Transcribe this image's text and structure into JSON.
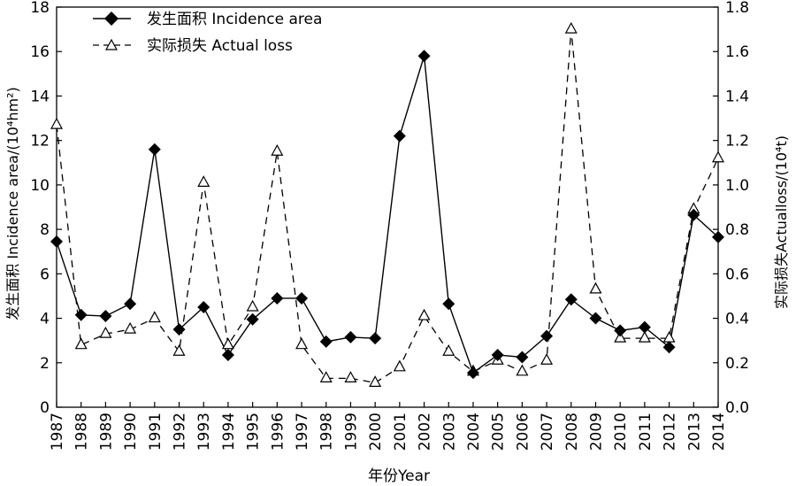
{
  "chart_data": {
    "type": "line",
    "x": [
      1987,
      1988,
      1989,
      1990,
      1991,
      1992,
      1993,
      1994,
      1995,
      1996,
      1997,
      1998,
      1999,
      2000,
      2001,
      2002,
      2003,
      2004,
      2005,
      2006,
      2007,
      2008,
      2009,
      2010,
      2011,
      2012,
      2013,
      2014
    ],
    "x_tick_labels": [
      "1987",
      "1988",
      "1989",
      "1990",
      "1991",
      "1992",
      "1993",
      "1994",
      "1995",
      "1996",
      "1997",
      "1998",
      "1999",
      "2000",
      "2001",
      "2002",
      "2003",
      "2004",
      "2005",
      "2006",
      "2007",
      "2008",
      "2009",
      "2010",
      "2011",
      "2012",
      "2013",
      "2014"
    ],
    "xlabel": "年份Year",
    "ylabel_left": "发生面积 Incidence area/(10⁴hm²)",
    "ylabel_right": "实际损失Actualloss/(10⁴t)",
    "ylim_left": [
      0,
      18
    ],
    "ylim_right": [
      0,
      1.8
    ],
    "y_ticks_left": [
      "0",
      "2",
      "4",
      "6",
      "8",
      "10",
      "12",
      "14",
      "16",
      "18"
    ],
    "y_ticks_right": [
      "0.0",
      "0.2",
      "0.4",
      "0.6",
      "0.8",
      "1.0",
      "1.2",
      "1.4",
      "1.6",
      "1.8"
    ],
    "grid": false,
    "legend_position": "top-left",
    "series": [
      {
        "name": "发生面积 Incidence area",
        "axis": "left",
        "style": "solid",
        "marker": "filled-diamond",
        "color": "#000000",
        "values": [
          7.45,
          4.15,
          4.1,
          4.65,
          11.6,
          3.5,
          4.5,
          2.35,
          3.95,
          4.9,
          4.9,
          2.95,
          3.15,
          3.1,
          12.2,
          15.8,
          4.65,
          1.55,
          2.35,
          2.25,
          3.2,
          4.85,
          4.0,
          3.45,
          3.6,
          2.7,
          8.65,
          7.65
        ]
      },
      {
        "name": "实际损失 Actual loss",
        "axis": "right",
        "style": "dashed",
        "marker": "open-triangle",
        "color": "#000000",
        "values": [
          1.27,
          0.28,
          0.33,
          0.35,
          0.4,
          0.25,
          1.01,
          0.28,
          0.45,
          1.15,
          0.28,
          0.13,
          0.13,
          0.11,
          0.18,
          0.41,
          0.25,
          0.16,
          0.21,
          0.16,
          0.21,
          1.7,
          0.53,
          0.31,
          0.31,
          0.31,
          0.89,
          1.12
        ]
      }
    ]
  }
}
